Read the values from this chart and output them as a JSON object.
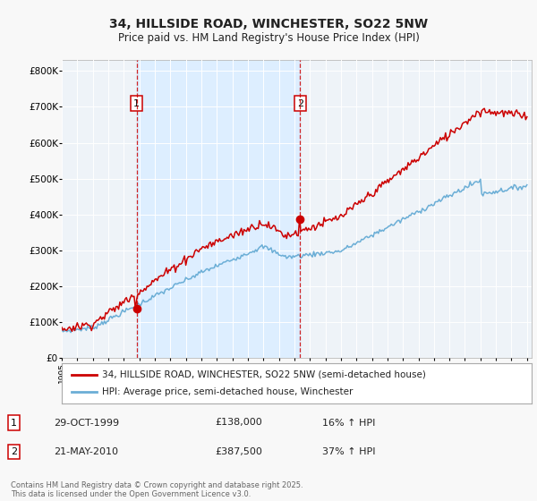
{
  "title1": "34, HILLSIDE ROAD, WINCHESTER, SO22 5NW",
  "title2": "Price paid vs. HM Land Registry's House Price Index (HPI)",
  "legend_label1": "34, HILLSIDE ROAD, WINCHESTER, SO22 5NW (semi-detached house)",
  "legend_label2": "HPI: Average price, semi-detached house, Winchester",
  "annotation1_date": "29-OCT-1999",
  "annotation1_price": "£138,000",
  "annotation1_hpi": "16% ↑ HPI",
  "annotation2_date": "21-MAY-2010",
  "annotation2_price": "£387,500",
  "annotation2_hpi": "37% ↑ HPI",
  "footer": "Contains HM Land Registry data © Crown copyright and database right 2025.\nThis data is licensed under the Open Government Licence v3.0.",
  "hpi_color": "#6baed6",
  "price_color": "#cc0000",
  "vline_color": "#cc0000",
  "shade_color": "#ddeeff",
  "background_color": "#f8f8f8",
  "plot_bg_color": "#eef3f8",
  "ylim": [
    0,
    830000
  ],
  "yticks": [
    0,
    100000,
    200000,
    300000,
    400000,
    500000,
    600000,
    700000,
    800000
  ],
  "sale1_year": 1999.83,
  "sale2_year": 2010.38,
  "sale1_price": 138000,
  "sale2_price": 387500
}
